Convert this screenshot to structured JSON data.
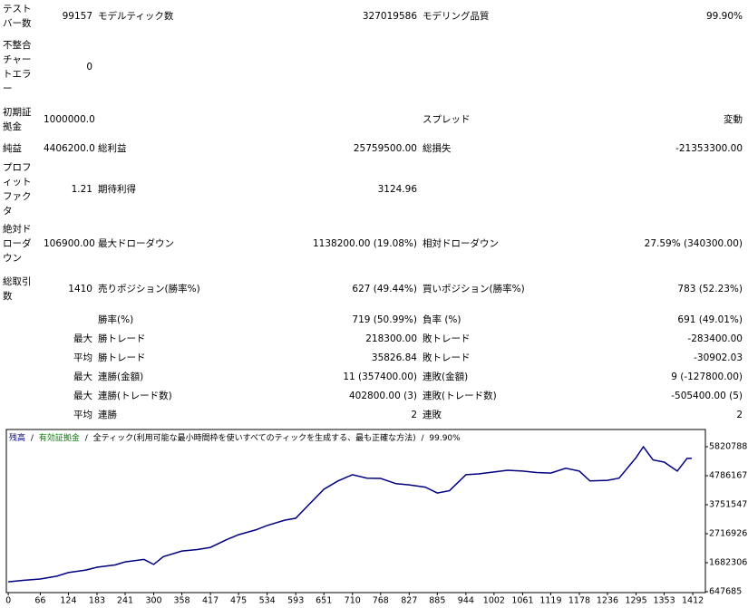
{
  "report": {
    "rows": [
      [
        "テストバー数",
        "99157",
        "モデルティック数",
        "327019586",
        "モデリング品質",
        "99.90%"
      ],
      [
        "不整合チャートエラー",
        "0",
        null,
        null,
        null,
        null
      ],
      [
        "初期証拠金",
        "1000000.00",
        null,
        null,
        "スプレッド",
        "変動"
      ],
      [
        "純益",
        "4406200.00",
        "総利益",
        "25759500.00",
        "総損失",
        "-21353300.00"
      ],
      [
        "プロフィットファクタ",
        "1.21",
        "期待利得",
        "3124.96",
        null,
        null
      ],
      [
        "絶対ドローダウン",
        "106900.00",
        "最大ドローダウン",
        "1138200.00 (19.08%)",
        "相対ドローダウン",
        "27.59% (340300.00)"
      ],
      [
        "総取引数",
        "1410",
        "売りポジション(勝率%)",
        "627 (49.44%)",
        "買いポジション(勝率%)",
        "783 (52.23%)"
      ],
      [
        null,
        null,
        "勝率(%)",
        "719 (50.99%)",
        "負率 (%)",
        "691 (49.01%)"
      ],
      [
        null,
        "最大",
        "勝トレード",
        "218300.00",
        "敗トレード",
        "-283400.00"
      ],
      [
        null,
        "平均",
        "勝トレード",
        "35826.84",
        "敗トレード",
        "-30902.03"
      ],
      [
        null,
        "最大",
        "連勝(金額)",
        "11 (357400.00)",
        "連敗(金額)",
        "9 (-127800.00)"
      ],
      [
        null,
        "最大",
        "連勝(トレード数)",
        "402800.00 (3)",
        "連敗(トレード数)",
        "-505400.00 (5)"
      ],
      [
        null,
        "平均",
        "連勝",
        "2",
        "連敗",
        "2"
      ]
    ]
  },
  "chart_data": {
    "type": "line",
    "legend_separator": "/",
    "equity_label": "有効証拠金",
    "equity_color": "#008000",
    "model_label": "全ティック(利用可能な最小時間枠を使いすべてのティックを生成する、最も正確な方法)",
    "quality": "99.90%",
    "x": [
      0,
      30,
      66,
      100,
      124,
      160,
      183,
      220,
      241,
      280,
      300,
      320,
      358,
      390,
      417,
      450,
      475,
      510,
      534,
      570,
      593,
      620,
      651,
      680,
      710,
      740,
      768,
      800,
      827,
      860,
      885,
      910,
      944,
      970,
      1002,
      1030,
      1061,
      1090,
      1119,
      1150,
      1178,
      1200,
      1236,
      1260,
      1295,
      1310,
      1330,
      1353,
      1380,
      1400,
      1410
    ],
    "series": [
      {
        "name": "残高",
        "color": "#000080",
        "values": [
          1000000,
          1050000,
          1100000,
          1200000,
          1330000,
          1420000,
          1520000,
          1600000,
          1710000,
          1800000,
          1620000,
          1900000,
          2100000,
          2150000,
          2230000,
          2500000,
          2680000,
          2850000,
          3010000,
          3200000,
          3270000,
          3750000,
          4300000,
          4600000,
          4820000,
          4700000,
          4690000,
          4500000,
          4460000,
          4380000,
          4170000,
          4250000,
          4820000,
          4850000,
          4920000,
          4980000,
          4950000,
          4900000,
          4880000,
          5050000,
          4950000,
          4600000,
          4620000,
          4700000,
          5430000,
          5820000,
          5350000,
          5270000,
          4950000,
          5400000,
          5406200
        ]
      }
    ],
    "xlim": [
      -4,
      1438
    ],
    "xticks": [
      0,
      66,
      124,
      183,
      241,
      300,
      358,
      417,
      475,
      534,
      593,
      651,
      710,
      768,
      827,
      885,
      944,
      1002,
      1061,
      1119,
      1178,
      1236,
      1295,
      1353,
      1412
    ],
    "ylim": [
      615000,
      6435000
    ],
    "yticks": [
      647685,
      1682306,
      2716926,
      3751547,
      4786167,
      5820788
    ],
    "grid": false
  }
}
